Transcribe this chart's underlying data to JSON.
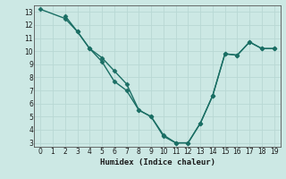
{
  "title": "",
  "xlabel": "Humidex (Indice chaleur)",
  "background_color": "#cce8e4",
  "grid_color": "#b8d8d4",
  "line_color": "#1a6e64",
  "x_line1": [
    0,
    2,
    3,
    4,
    5,
    6,
    7,
    8,
    9,
    10,
    11,
    12,
    13,
    14,
    15,
    16,
    17,
    18,
    19
  ],
  "y_line1": [
    13.2,
    12.5,
    11.5,
    10.2,
    9.2,
    7.7,
    7.0,
    5.5,
    5.0,
    3.6,
    3.0,
    3.0,
    4.5,
    6.6,
    9.8,
    9.7,
    10.7,
    10.2,
    10.2
  ],
  "x_line2": [
    2,
    3,
    4,
    5,
    6,
    7,
    8,
    9,
    10,
    11,
    12,
    13,
    14,
    15,
    16,
    17,
    18,
    19
  ],
  "y_line2": [
    12.7,
    11.5,
    10.2,
    9.5,
    8.5,
    7.5,
    5.5,
    5.0,
    3.5,
    3.0,
    3.0,
    4.5,
    6.6,
    9.8,
    9.7,
    10.7,
    10.2,
    10.2
  ],
  "xlim": [
    -0.5,
    19.5
  ],
  "ylim": [
    2.7,
    13.5
  ],
  "xticks": [
    0,
    1,
    2,
    3,
    4,
    5,
    6,
    7,
    8,
    9,
    10,
    11,
    12,
    13,
    14,
    15,
    16,
    17,
    18,
    19
  ],
  "yticks": [
    3,
    4,
    5,
    6,
    7,
    8,
    9,
    10,
    11,
    12,
    13
  ],
  "markersize": 2.5,
  "linewidth": 1.0
}
